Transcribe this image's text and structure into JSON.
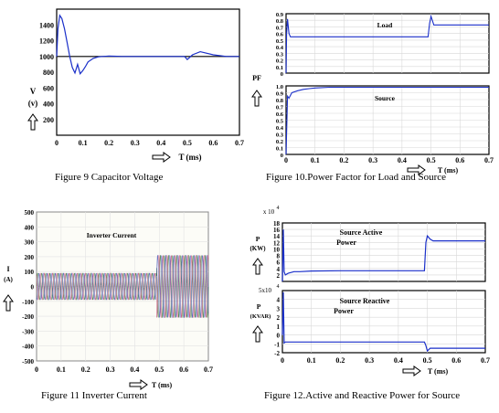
{
  "chart_data": [
    {
      "id": "fig9",
      "type": "line",
      "caption": "Figure 9 Capacitor Voltage",
      "xlabel": "T (ms)",
      "ylabel": [
        "V",
        "(v)"
      ],
      "xlim": [
        0,
        0.7
      ],
      "ylim": [
        0,
        1600
      ],
      "xticks": [
        "0",
        "0.1",
        "0.2",
        "0.3",
        "0.4",
        "0.5",
        "0.6",
        "0.7"
      ],
      "yticks": [
        "200",
        "400",
        "600",
        "800",
        "1000",
        "1200",
        "1400"
      ],
      "series": [
        {
          "color": "#1a2fc9",
          "x": [
            0,
            0.005,
            0.012,
            0.02,
            0.03,
            0.04,
            0.05,
            0.06,
            0.07,
            0.08,
            0.09,
            0.1,
            0.11,
            0.12,
            0.14,
            0.16,
            0.2,
            0.25,
            0.3,
            0.49,
            0.5,
            0.52,
            0.55,
            0.6,
            0.65,
            0.7
          ],
          "y": [
            1000,
            1350,
            1520,
            1480,
            1350,
            1180,
            1000,
            860,
            790,
            900,
            780,
            820,
            870,
            930,
            975,
            995,
            1005,
            1000,
            1000,
            1000,
            960,
            1020,
            1060,
            1020,
            1000,
            1000
          ]
        },
        {
          "color": "#000000",
          "x": [
            0,
            0.7
          ],
          "y": [
            1000,
            1000
          ]
        }
      ]
    },
    {
      "id": "fig10a",
      "type": "line",
      "ylabel": "",
      "annotation": "Load",
      "xlim": [
        0,
        0.7
      ],
      "ylim": [
        0,
        0.9
      ],
      "yticks": [
        "0",
        "0.1",
        "0.2",
        "0.3",
        "0.4",
        "0.5",
        "0.6",
        "0.7",
        "0.8",
        "0.9"
      ],
      "series": [
        {
          "color": "#1a2fc9",
          "x": [
            0,
            0.002,
            0.005,
            0.01,
            0.015,
            0.02,
            0.49,
            0.495,
            0.5,
            0.51,
            0.7
          ],
          "y": [
            0,
            0.6,
            0.82,
            0.6,
            0.55,
            0.55,
            0.55,
            0.75,
            0.86,
            0.73,
            0.73
          ]
        }
      ]
    },
    {
      "id": "fig10b",
      "type": "line",
      "ylabel": "PF",
      "annotation": "Source",
      "caption": "Figure 10.Power Factor for Load and Source",
      "xlabel": "T (ms)",
      "xlim": [
        0,
        0.7
      ],
      "ylim": [
        0,
        1.0
      ],
      "xticks": [
        "0",
        "0.1",
        "0.2",
        "0.3",
        "0.4",
        "0.5",
        "0.6",
        "0.7"
      ],
      "yticks": [
        "0",
        "0.1",
        "0.2",
        "0.3",
        "0.4",
        "0.5",
        "0.6",
        "0.7",
        "0.8",
        "0.9",
        "1.0"
      ],
      "series": [
        {
          "color": "#1a2fc9",
          "x": [
            0,
            0.005,
            0.01,
            0.02,
            0.04,
            0.06,
            0.08,
            0.1,
            0.15,
            0.2,
            0.7
          ],
          "y": [
            0,
            0.85,
            0.82,
            0.9,
            0.93,
            0.95,
            0.96,
            0.97,
            0.98,
            0.98,
            0.98
          ]
        },
        {
          "color": "#000000",
          "x": [
            0,
            0.7
          ],
          "y": [
            1.0,
            1.0
          ]
        }
      ]
    },
    {
      "id": "fig11",
      "type": "line",
      "caption": "Figure 11 Inverter Current",
      "annotation": "Inverter Current",
      "xlabel": "T (ms)",
      "ylabel": [
        "I",
        "(A)"
      ],
      "xlim": [
        0,
        0.7
      ],
      "ylim": [
        -500,
        500
      ],
      "xticks": [
        "0",
        "0.1",
        "0.2",
        "0.3",
        "0.4",
        "0.5",
        "0.6",
        "0.7"
      ],
      "yticks": [
        "500",
        "400",
        "300",
        "200",
        "100",
        "0",
        "-100",
        "-200",
        "-300",
        "-400",
        "-500"
      ],
      "series": [
        {
          "color": "#2a6e2a",
          "phase": 0
        },
        {
          "color": "#c23b6a",
          "phase": 2.094
        },
        {
          "color": "#2a3fb0",
          "phase": 4.189
        }
      ],
      "amplitude_before": 90,
      "amplitude_after": 210,
      "step_time": 0.49
    },
    {
      "id": "fig12a",
      "type": "line",
      "annotation": [
        "Source Active",
        "Power"
      ],
      "ylabel": [
        "P",
        "(KW)"
      ],
      "exponent": [
        "x 10",
        "4"
      ],
      "xlim": [
        0,
        0.7
      ],
      "ylim": [
        0,
        18
      ],
      "yticks": [
        "18",
        "16",
        "14",
        "12",
        "10",
        "8",
        "6",
        "4",
        "2"
      ],
      "series": [
        {
          "color": "#1a2fc9",
          "x": [
            0,
            0.003,
            0.006,
            0.01,
            0.02,
            0.04,
            0.06,
            0.1,
            0.2,
            0.3,
            0.49,
            0.495,
            0.5,
            0.51,
            0.52,
            0.7
          ],
          "y": [
            0,
            16,
            3,
            2,
            2.5,
            3,
            3,
            3.2,
            3.3,
            3.3,
            3.3,
            12,
            14,
            13,
            12.5,
            12.5
          ]
        }
      ]
    },
    {
      "id": "fig12b",
      "type": "line",
      "caption": "Figure 12.Active and Reactive Power for Source",
      "annotation": [
        "Source Reactive",
        "Power"
      ],
      "ylabel": [
        "P",
        "(KVAR)"
      ],
      "exponent": [
        "5x10",
        "4"
      ],
      "xlabel": "T (ms)",
      "xlim": [
        0,
        0.7
      ],
      "ylim": [
        -2,
        5
      ],
      "xticks": [
        "0",
        "0.1",
        "0.2",
        "0.3",
        "0.4",
        "0.5",
        "0.6",
        "0.7"
      ],
      "yticks": [
        "4",
        "3",
        "2",
        "1",
        "0",
        "-1",
        "-2"
      ],
      "series": [
        {
          "color": "#1a2fc9",
          "x": [
            0,
            0.003,
            0.006,
            0.01,
            0.03,
            0.1,
            0.3,
            0.49,
            0.495,
            0.5,
            0.51,
            0.7
          ],
          "y": [
            0,
            4.8,
            -0.9,
            -0.8,
            -0.8,
            -0.8,
            -0.8,
            -0.8,
            -1.2,
            -1.8,
            -1.5,
            -1.5
          ]
        }
      ]
    }
  ]
}
